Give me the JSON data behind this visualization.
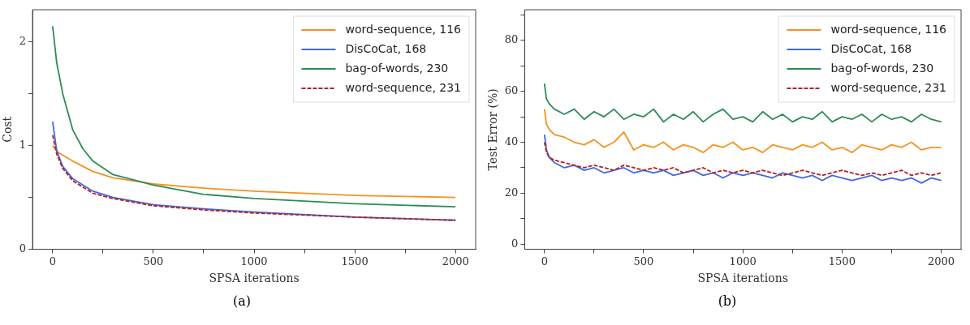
{
  "chart_data": [
    {
      "type": "line",
      "xlabel": "SPSA iterations",
      "ylabel": "Cost",
      "annotations": [
        "(a)"
      ],
      "xlim": [
        -100,
        2100
      ],
      "xticks": [
        0,
        {
          "value": 250,
          "label": null
        },
        500,
        {
          "value": 750,
          "label": null
        },
        1000,
        {
          "value": 1250,
          "label": null
        },
        1500,
        {
          "value": 1750,
          "label": null
        },
        2000
      ],
      "ylim": [
        0,
        2.31
      ],
      "yticks": [
        0,
        {
          "value": 0.5,
          "label": null
        },
        1,
        {
          "value": 1.5,
          "label": null
        },
        2
      ],
      "grid": false,
      "legend": "top right",
      "marker": "none",
      "series": [
        {
          "name": "word-sequence, 116",
          "color": "#f5921e",
          "x": [
            0,
            30,
            100,
            200,
            300,
            500,
            750,
            1000,
            1500,
            2000
          ],
          "values": [
            1.0,
            0.93,
            0.85,
            0.75,
            0.69,
            0.63,
            0.59,
            0.56,
            0.52,
            0.5
          ]
        },
        {
          "name": "DisCoCat, 168",
          "color": "#4169e1",
          "x": [
            0,
            20,
            50,
            100,
            200,
            300,
            500,
            750,
            1000,
            1500,
            2000
          ],
          "values": [
            1.23,
            0.95,
            0.8,
            0.68,
            0.56,
            0.5,
            0.43,
            0.39,
            0.36,
            0.31,
            0.28
          ]
        },
        {
          "name": "bag-of-words, 230",
          "color": "#2e8b57",
          "x": [
            0,
            20,
            50,
            100,
            150,
            200,
            300,
            500,
            750,
            1000,
            1500,
            2000
          ],
          "values": [
            2.15,
            1.8,
            1.5,
            1.15,
            0.97,
            0.85,
            0.72,
            0.62,
            0.53,
            0.49,
            0.44,
            0.41
          ]
        },
        {
          "name": "word-sequence, 231",
          "color": "#b22222",
          "line_style": "dashed",
          "x": [
            0,
            20,
            50,
            100,
            200,
            300,
            500,
            750,
            1000,
            1500,
            2000
          ],
          "values": [
            1.1,
            0.92,
            0.78,
            0.66,
            0.54,
            0.49,
            0.42,
            0.38,
            0.35,
            0.31,
            0.28
          ]
        }
      ]
    },
    {
      "type": "line",
      "xlabel": "SPSA iterations",
      "ylabel": "Test Error (%)",
      "annotations": [
        "(b)"
      ],
      "xlim": [
        -100,
        2100
      ],
      "xticks": [
        0,
        {
          "value": 250,
          "label": null
        },
        500,
        {
          "value": 750,
          "label": null
        },
        1000,
        {
          "value": 1250,
          "label": null
        },
        1500,
        {
          "value": 1750,
          "label": null
        },
        2000
      ],
      "ylim": [
        -2,
        92
      ],
      "yticks": [
        0,
        {
          "value": 10,
          "label": null
        },
        20,
        {
          "value": 30,
          "label": null
        },
        40,
        {
          "value": 50,
          "label": null
        },
        60,
        {
          "value": 70,
          "label": null
        },
        80,
        {
          "value": 90,
          "label": null
        }
      ],
      "grid": false,
      "legend": "top right",
      "marker": "none",
      "x": [
        0,
        10,
        25,
        50,
        100,
        150,
        200,
        250,
        300,
        350,
        400,
        450,
        500,
        550,
        600,
        650,
        700,
        750,
        800,
        850,
        900,
        950,
        1000,
        1050,
        1100,
        1150,
        1200,
        1250,
        1300,
        1350,
        1400,
        1450,
        1500,
        1550,
        1600,
        1650,
        1700,
        1750,
        1800,
        1850,
        1900,
        1950,
        2000
      ],
      "series": [
        {
          "name": "word-sequence, 116",
          "color": "#f5921e",
          "values": [
            53,
            47,
            45,
            43,
            42,
            40,
            39,
            41,
            38,
            40,
            44,
            37,
            39,
            38,
            40,
            37,
            39,
            38,
            36,
            39,
            38,
            40,
            37,
            38,
            36,
            39,
            38,
            37,
            39,
            38,
            40,
            37,
            38,
            36,
            39,
            38,
            37,
            39,
            38,
            40,
            37,
            38,
            38
          ]
        },
        {
          "name": "DisCoCat, 168",
          "color": "#4169e1",
          "values": [
            43,
            37,
            34,
            32,
            30,
            31,
            29,
            30,
            28,
            29,
            30,
            28,
            29,
            28,
            29,
            27,
            28,
            29,
            27,
            28,
            26,
            28,
            27,
            28,
            27,
            26,
            28,
            27,
            26,
            27,
            25,
            27,
            26,
            25,
            26,
            27,
            25,
            26,
            25,
            26,
            24,
            26,
            25
          ]
        },
        {
          "name": "bag-of-words, 230",
          "color": "#2e8b57",
          "values": [
            63,
            57,
            55,
            53,
            51,
            53,
            49,
            52,
            50,
            53,
            49,
            51,
            50,
            53,
            48,
            51,
            49,
            52,
            48,
            51,
            53,
            49,
            50,
            48,
            52,
            49,
            51,
            48,
            50,
            49,
            52,
            48,
            50,
            49,
            51,
            48,
            51,
            49,
            50,
            48,
            51,
            49,
            48
          ]
        },
        {
          "name": "word-sequence, 231",
          "color": "#b22222",
          "line_style": "dashed",
          "values": [
            40,
            36,
            34,
            33,
            32,
            31,
            30,
            31,
            30,
            29,
            31,
            30,
            29,
            30,
            29,
            30,
            28,
            29,
            30,
            28,
            29,
            28,
            29,
            28,
            29,
            28,
            27,
            28,
            29,
            28,
            27,
            28,
            29,
            28,
            27,
            28,
            27,
            28,
            29,
            27,
            28,
            27,
            28
          ]
        }
      ]
    }
  ]
}
